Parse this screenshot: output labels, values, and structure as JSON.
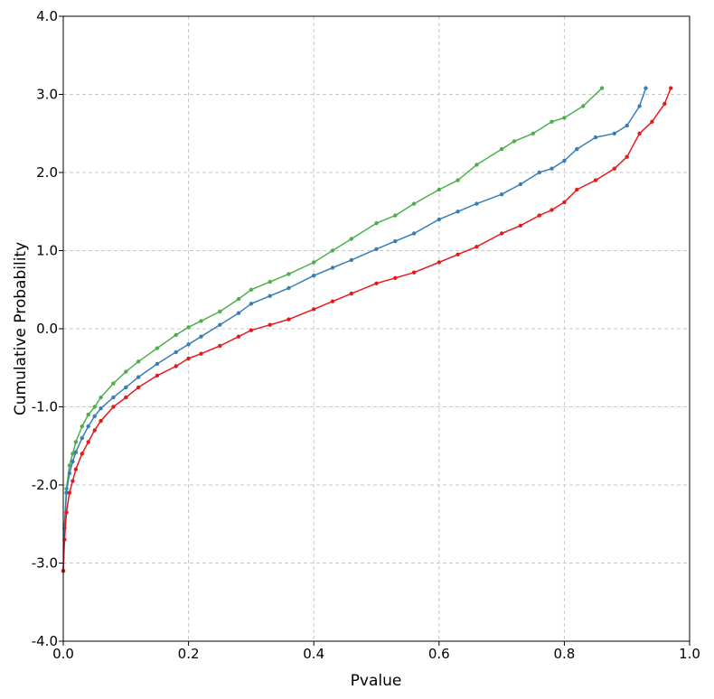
{
  "chart_data": {
    "type": "line",
    "title": "",
    "xlabel": "Pvalue",
    "ylabel": "Cumulative Probability",
    "xlim": [
      0.0,
      1.0
    ],
    "ylim": [
      -4.0,
      4.0
    ],
    "grid": true,
    "x_ticks": [
      "0.0",
      "0.2",
      "0.4",
      "0.6",
      "0.8",
      "1.0"
    ],
    "y_ticks": [
      "-4.0",
      "-3.0",
      "-2.0",
      "-1.0",
      "0.0",
      "1.0",
      "2.0",
      "3.0",
      "4.0"
    ],
    "series": [
      {
        "color": "#4daf4a",
        "x": [
          0.0,
          0.002,
          0.005,
          0.01,
          0.015,
          0.02,
          0.03,
          0.04,
          0.05,
          0.06,
          0.08,
          0.1,
          0.12,
          0.15,
          0.18,
          0.2,
          0.22,
          0.25,
          0.28,
          0.3,
          0.33,
          0.36,
          0.4,
          0.43,
          0.46,
          0.5,
          0.53,
          0.56,
          0.6,
          0.63,
          0.66,
          0.7,
          0.72,
          0.75,
          0.78,
          0.8,
          0.83,
          0.86
        ],
        "y": [
          -3.1,
          -2.5,
          -2.05,
          -1.75,
          -1.6,
          -1.45,
          -1.25,
          -1.1,
          -1.0,
          -0.88,
          -0.7,
          -0.55,
          -0.42,
          -0.25,
          -0.08,
          0.02,
          0.1,
          0.22,
          0.38,
          0.5,
          0.6,
          0.7,
          0.85,
          1.0,
          1.15,
          1.35,
          1.45,
          1.6,
          1.78,
          1.9,
          2.1,
          2.3,
          2.4,
          2.5,
          2.65,
          2.7,
          2.85,
          3.08
        ]
      },
      {
        "color": "#377eb8",
        "x": [
          0.0,
          0.002,
          0.005,
          0.01,
          0.015,
          0.02,
          0.03,
          0.04,
          0.05,
          0.06,
          0.08,
          0.1,
          0.12,
          0.15,
          0.18,
          0.2,
          0.22,
          0.25,
          0.28,
          0.3,
          0.33,
          0.36,
          0.4,
          0.43,
          0.46,
          0.5,
          0.53,
          0.56,
          0.6,
          0.63,
          0.66,
          0.7,
          0.73,
          0.76,
          0.78,
          0.8,
          0.82,
          0.85,
          0.88,
          0.9,
          0.92,
          0.93
        ],
        "y": [
          -3.1,
          -2.55,
          -2.1,
          -1.85,
          -1.7,
          -1.58,
          -1.4,
          -1.25,
          -1.12,
          -1.02,
          -0.88,
          -0.75,
          -0.62,
          -0.45,
          -0.3,
          -0.2,
          -0.1,
          0.05,
          0.2,
          0.32,
          0.42,
          0.52,
          0.68,
          0.78,
          0.88,
          1.02,
          1.12,
          1.22,
          1.4,
          1.5,
          1.6,
          1.72,
          1.85,
          2.0,
          2.05,
          2.15,
          2.3,
          2.45,
          2.5,
          2.6,
          2.85,
          3.08
        ]
      },
      {
        "color": "#e41a1c",
        "x": [
          0.0,
          0.002,
          0.005,
          0.01,
          0.015,
          0.02,
          0.03,
          0.04,
          0.05,
          0.06,
          0.08,
          0.1,
          0.12,
          0.15,
          0.18,
          0.2,
          0.22,
          0.25,
          0.28,
          0.3,
          0.33,
          0.36,
          0.4,
          0.43,
          0.46,
          0.5,
          0.53,
          0.56,
          0.6,
          0.63,
          0.66,
          0.7,
          0.73,
          0.76,
          0.78,
          0.8,
          0.82,
          0.85,
          0.88,
          0.9,
          0.92,
          0.94,
          0.96,
          0.97
        ],
        "y": [
          -3.1,
          -2.7,
          -2.35,
          -2.1,
          -1.95,
          -1.8,
          -1.6,
          -1.45,
          -1.3,
          -1.18,
          -1.0,
          -0.88,
          -0.75,
          -0.6,
          -0.48,
          -0.38,
          -0.32,
          -0.22,
          -0.1,
          -0.02,
          0.05,
          0.12,
          0.25,
          0.35,
          0.45,
          0.58,
          0.65,
          0.72,
          0.85,
          0.95,
          1.05,
          1.22,
          1.32,
          1.45,
          1.52,
          1.62,
          1.78,
          1.9,
          2.05,
          2.2,
          2.5,
          2.65,
          2.88,
          3.08
        ]
      }
    ]
  }
}
